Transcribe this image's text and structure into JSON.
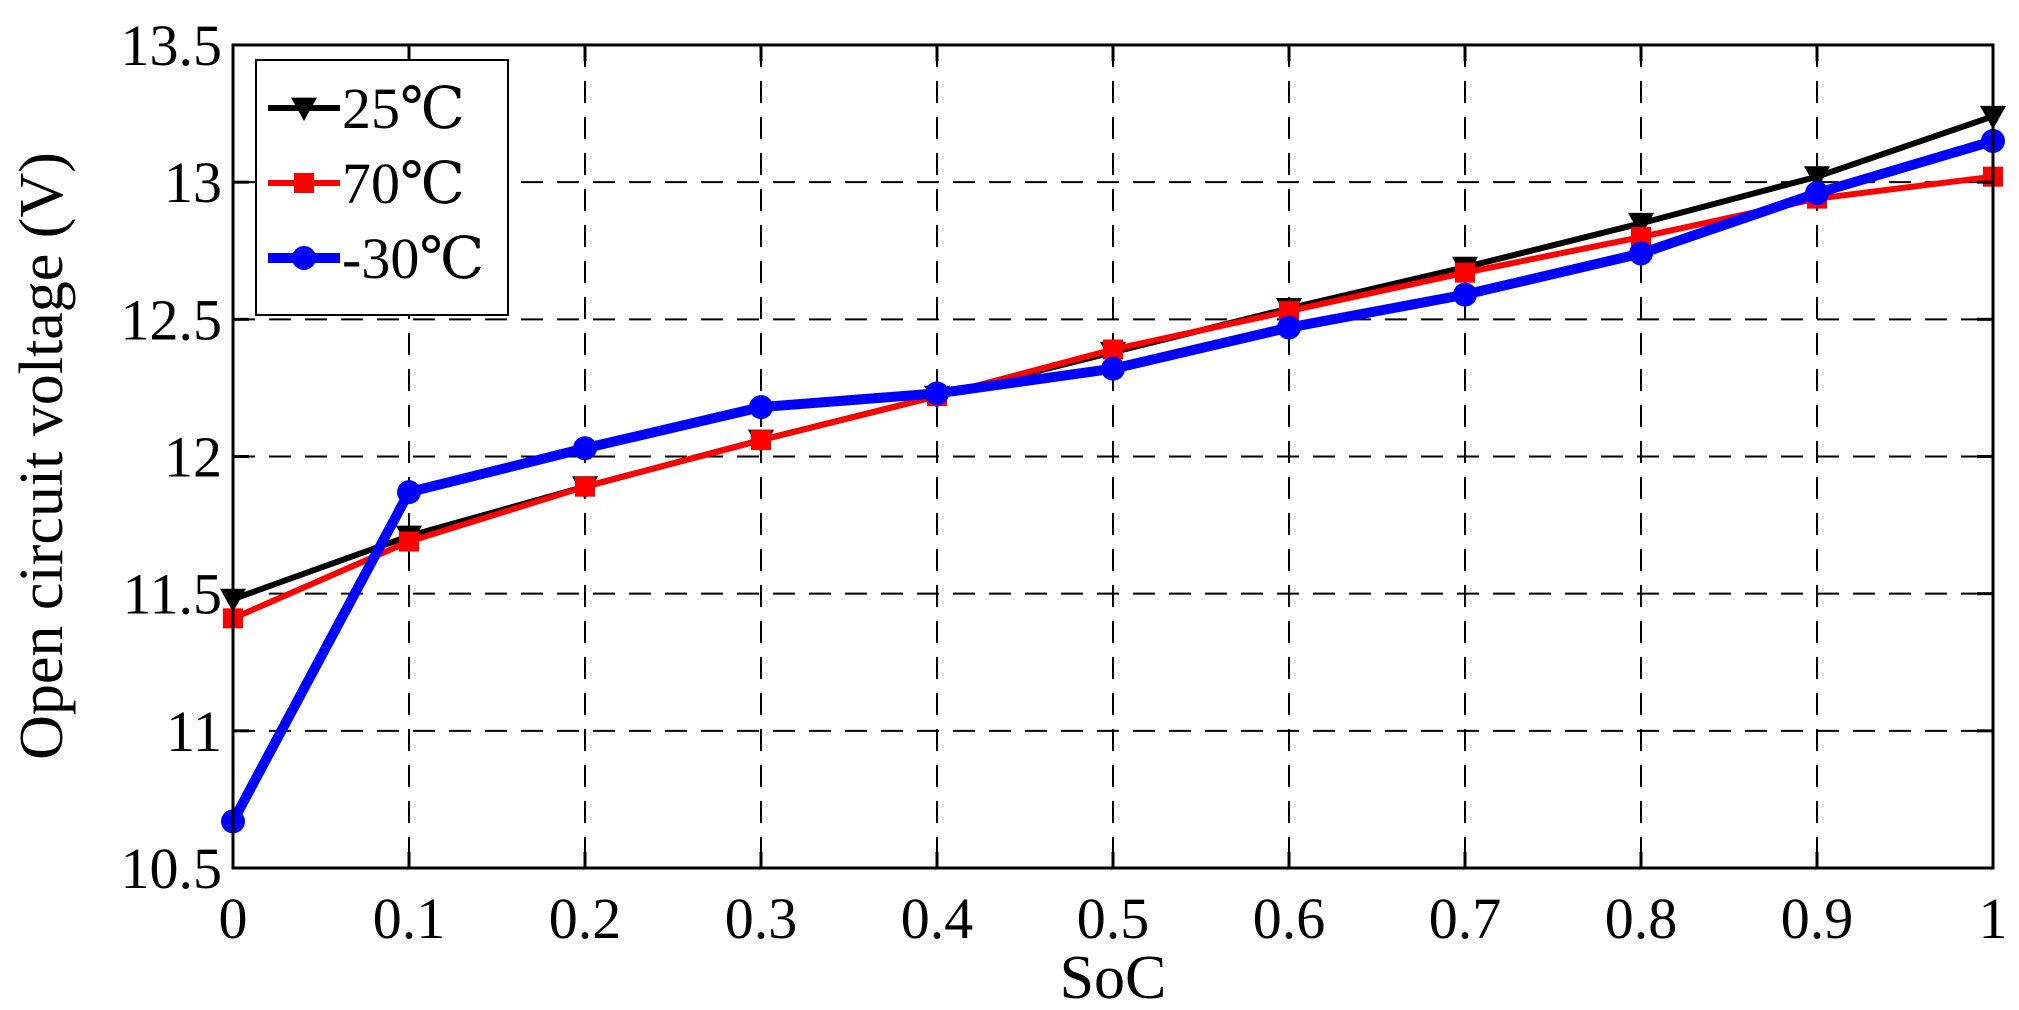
{
  "chart_data": {
    "type": "line",
    "title": "",
    "xlabel": "SoC",
    "ylabel": "Open circuit voltage (V)",
    "xlim": [
      0,
      1
    ],
    "ylim": [
      10.5,
      13.5
    ],
    "grid": true,
    "legend_position": "top-left",
    "x": [
      0,
      0.1,
      0.2,
      0.3,
      0.4,
      0.5,
      0.6,
      0.7,
      0.8,
      0.9,
      1
    ],
    "x_ticks": [
      "0",
      "0.1",
      "0.2",
      "0.3",
      "0.4",
      "0.5",
      "0.6",
      "0.7",
      "0.8",
      "0.9",
      "1"
    ],
    "y_ticks": [
      "10.5",
      "11",
      "11.5",
      "12",
      "12.5",
      "13",
      "13.5"
    ],
    "y_tick_values": [
      10.5,
      11,
      11.5,
      12,
      12.5,
      13,
      13.5
    ],
    "series": [
      {
        "name": "25℃",
        "color": "#000000",
        "marker": "triangle-down",
        "values": [
          11.48,
          11.71,
          11.89,
          12.06,
          12.22,
          12.38,
          12.54,
          12.69,
          12.85,
          13.02,
          13.24
        ]
      },
      {
        "name": "70℃",
        "color": "#ff0000",
        "marker": "square",
        "values": [
          11.41,
          11.69,
          11.89,
          12.06,
          12.22,
          12.39,
          12.53,
          12.67,
          12.8,
          12.94,
          13.02
        ]
      },
      {
        "name": "-30℃",
        "color": "#0000ff",
        "marker": "circle",
        "values": [
          10.67,
          11.87,
          12.03,
          12.18,
          12.23,
          12.32,
          12.47,
          12.59,
          12.74,
          12.96,
          13.15
        ]
      }
    ]
  }
}
